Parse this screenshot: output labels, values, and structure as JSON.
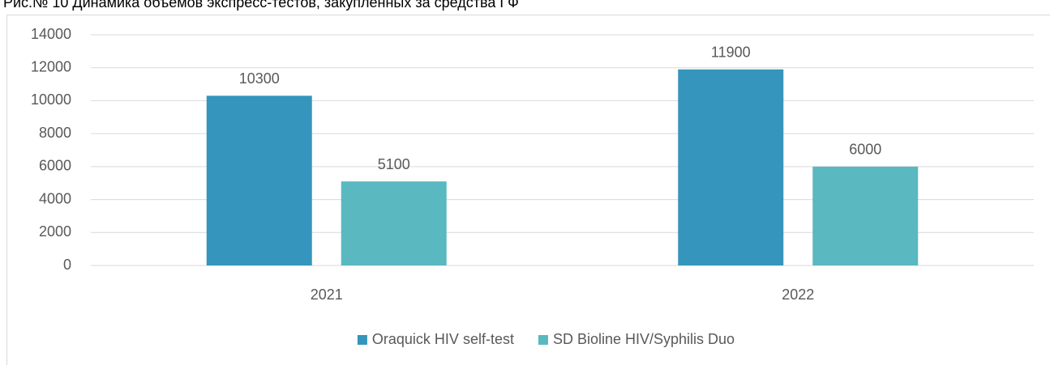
{
  "chart_data": {
    "type": "bar",
    "title": "Рис.№ 10 Динамика объемов экспресс-тестов, закупленных за средства ГФ",
    "categories": [
      "2021",
      "2022"
    ],
    "series": [
      {
        "name": "Oraquick HIV self-test",
        "color": "#3595bc",
        "values": [
          10300,
          11900
        ]
      },
      {
        "name": "SD Bioline HIV/Syphilis Duo",
        "color": "#5ab8c0",
        "values": [
          5100,
          6000
        ]
      }
    ],
    "ylim": [
      0,
      14000
    ],
    "yticks": [
      0,
      2000,
      4000,
      6000,
      8000,
      10000,
      12000,
      14000
    ],
    "grid": true,
    "legend": "bottom"
  }
}
